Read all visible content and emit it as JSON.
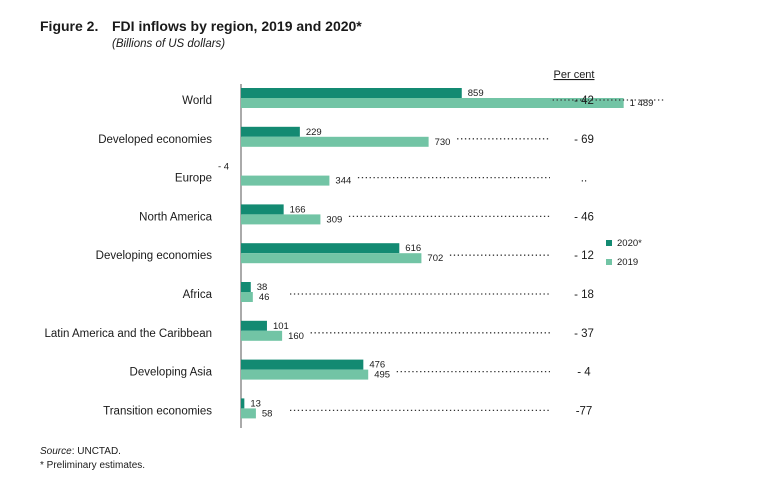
{
  "figure": {
    "label": "Figure 2.",
    "title": "FDI inflows by region, 2019 and 2020*",
    "subtitle": "(Billions of US dollars)"
  },
  "chart_data": {
    "type": "bar",
    "orientation": "horizontal",
    "categories": [
      "World",
      "Developed economies",
      "Europe",
      "North America",
      "Developing economies",
      "Africa",
      "Latin America and the Caribbean",
      "Developing Asia",
      "Transition economies"
    ],
    "series": [
      {
        "name": "2020*",
        "color": "#138a72",
        "values": [
          859,
          229,
          -4,
          166,
          616,
          38,
          101,
          476,
          13
        ],
        "labels": [
          "859",
          "229",
          "- 4",
          "166",
          "616",
          "38",
          "101",
          "476",
          "13"
        ]
      },
      {
        "name": "2019",
        "color": "#72c4a5",
        "values": [
          1489,
          730,
          344,
          309,
          702,
          46,
          160,
          495,
          58
        ],
        "labels": [
          "1 489",
          "730",
          "344",
          "309",
          "702",
          "46",
          "160",
          "495",
          "58"
        ]
      }
    ],
    "percent_change_header": "Per cent",
    "percent_change": [
      "- 42",
      "- 69",
      "..",
      "- 46",
      "- 12",
      "- 18",
      "- 37",
      "- 4",
      "-77"
    ],
    "xlim": [
      0,
      1500
    ],
    "legend": {
      "position": "right",
      "entries": [
        "2020*",
        "2019"
      ]
    }
  },
  "notes": {
    "source_label": "Source",
    "source_text": ": UNCTAD.",
    "footnote": "* Preliminary estimates."
  }
}
